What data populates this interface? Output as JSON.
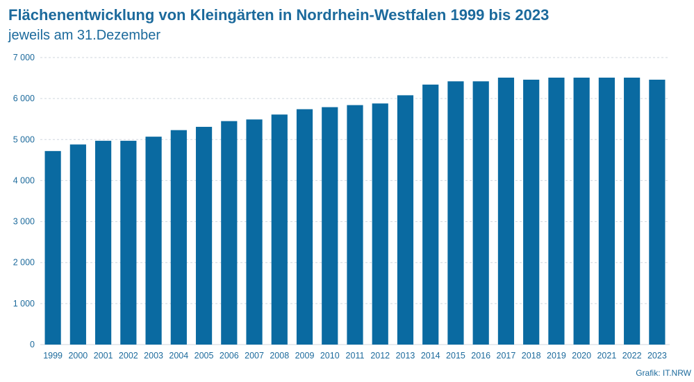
{
  "title": "Flächenentwicklung von Kleingärten in Nordrhein-Westfalen 1999 bis 2023",
  "subtitle": "jeweils am 31.Dezember",
  "source": "Grafik: IT.NRW",
  "colors": {
    "bar": "#0a6aa1",
    "text": "#1c6a9c",
    "grid": "#cfd6dd"
  },
  "chart_data": {
    "type": "bar",
    "title": "Flächenentwicklung von Kleingärten in Nordrhein-Westfalen 1999 bis 2023",
    "subtitle": "jeweils am 31.Dezember",
    "xlabel": "",
    "ylabel": "",
    "categories": [
      "1999",
      "2000",
      "2001",
      "2002",
      "2003",
      "2004",
      "2005",
      "2006",
      "2007",
      "2008",
      "2009",
      "2010",
      "2011",
      "2012",
      "2013",
      "2014",
      "2015",
      "2016",
      "2017",
      "2018",
      "2019",
      "2020",
      "2021",
      "2022",
      "2023"
    ],
    "values": [
      4720,
      4880,
      4970,
      4970,
      5070,
      5230,
      5310,
      5450,
      5490,
      5610,
      5740,
      5790,
      5840,
      5880,
      6080,
      6340,
      6420,
      6420,
      6510,
      6460,
      6510,
      6510,
      6510,
      6510,
      6460
    ],
    "ylim": [
      0,
      7000
    ],
    "yticks": [
      0,
      1000,
      2000,
      3000,
      4000,
      5000,
      6000,
      7000
    ],
    "ytick_labels": [
      "0",
      "1 000",
      "2 000",
      "3 000",
      "4 000",
      "5 000",
      "6 000",
      "7 000"
    ],
    "grid": true,
    "legend": "none"
  }
}
